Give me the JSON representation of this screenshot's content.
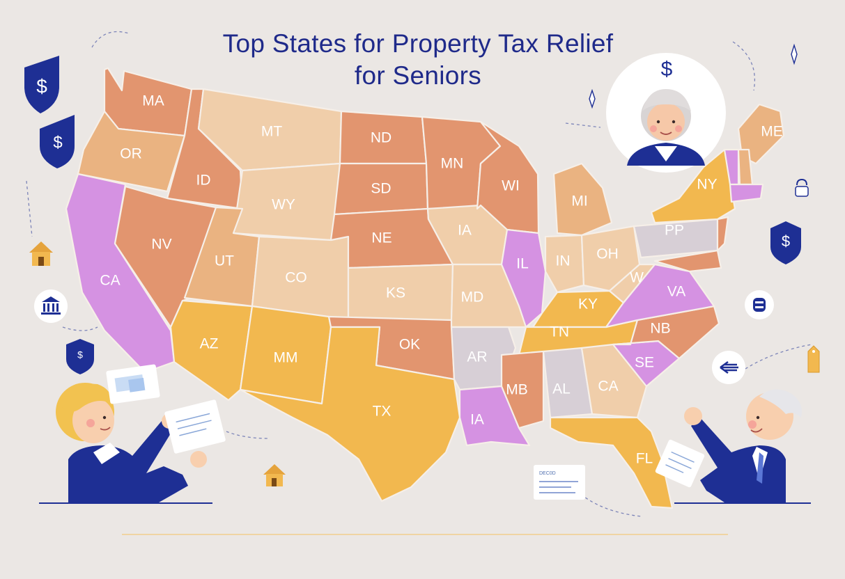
{
  "title": {
    "line1": "Top States for Property Tax Relief",
    "line2": "for Seniors"
  },
  "colors": {
    "background": "#ebe7e4",
    "title": "#1f2a8a",
    "terracotta": "#e2956f",
    "beige": "#f0ceaa",
    "tan": "#eab381",
    "gold": "#f2b84f",
    "lavender": "#d592e2",
    "grey": "#d7cfd6",
    "navy": "#1e2f94"
  },
  "states": [
    {
      "id": "WA",
      "label": "MA",
      "color": "terracotta"
    },
    {
      "id": "OR",
      "label": "OR",
      "color": "tan"
    },
    {
      "id": "CA",
      "label": "CA",
      "color": "lavender"
    },
    {
      "id": "ID",
      "label": "ID",
      "color": "terracotta"
    },
    {
      "id": "NV",
      "label": "NV",
      "color": "terracotta"
    },
    {
      "id": "MT",
      "label": "MT",
      "color": "beige"
    },
    {
      "id": "WY",
      "label": "WY",
      "color": "beige"
    },
    {
      "id": "UT",
      "label": "UT",
      "color": "tan"
    },
    {
      "id": "CO",
      "label": "CO",
      "color": "beige"
    },
    {
      "id": "AZ",
      "label": "AZ",
      "color": "gold"
    },
    {
      "id": "NM",
      "label": "MM",
      "color": "gold"
    },
    {
      "id": "ND",
      "label": "ND",
      "color": "terracotta"
    },
    {
      "id": "SD",
      "label": "SD",
      "color": "terracotta"
    },
    {
      "id": "NE",
      "label": "NE",
      "color": "terracotta"
    },
    {
      "id": "KS",
      "label": "KS",
      "color": "beige"
    },
    {
      "id": "OK",
      "label": "OK",
      "color": "terracotta"
    },
    {
      "id": "TX",
      "label": "TX",
      "color": "gold"
    },
    {
      "id": "MN",
      "label": "MN",
      "color": "terracotta"
    },
    {
      "id": "IA",
      "label": "IA",
      "color": "beige"
    },
    {
      "id": "MO",
      "label": "MD",
      "color": "beige"
    },
    {
      "id": "AR",
      "label": "AR",
      "color": "grey"
    },
    {
      "id": "LA",
      "label": "IA",
      "color": "lavender"
    },
    {
      "id": "WI",
      "label": "WI",
      "color": "terracotta"
    },
    {
      "id": "IL",
      "label": "IL",
      "color": "lavender"
    },
    {
      "id": "MI",
      "label": "MI",
      "color": "tan"
    },
    {
      "id": "IN",
      "label": "IN",
      "color": "beige"
    },
    {
      "id": "OH",
      "label": "OH",
      "color": "beige"
    },
    {
      "id": "KY",
      "label": "KY",
      "color": "gold"
    },
    {
      "id": "TN",
      "label": "TN",
      "color": "gold"
    },
    {
      "id": "MS",
      "label": "MB",
      "color": "terracotta"
    },
    {
      "id": "AL",
      "label": "AL",
      "color": "grey"
    },
    {
      "id": "GA",
      "label": "CA",
      "color": "beige"
    },
    {
      "id": "FL",
      "label": "FL",
      "color": "gold"
    },
    {
      "id": "SC",
      "label": "SE",
      "color": "lavender"
    },
    {
      "id": "NC",
      "label": "NB",
      "color": "terracotta"
    },
    {
      "id": "VA",
      "label": "VA",
      "color": "lavender"
    },
    {
      "id": "WV",
      "label": "W",
      "color": "beige"
    },
    {
      "id": "PA",
      "label": "PP",
      "color": "grey"
    },
    {
      "id": "NY",
      "label": "NY",
      "color": "gold"
    },
    {
      "id": "ME",
      "label": "ME",
      "color": "tan"
    },
    {
      "id": "VT",
      "label": "",
      "color": "lavender"
    },
    {
      "id": "NH",
      "label": "",
      "color": "tan"
    },
    {
      "id": "MA2",
      "label": "",
      "color": "lavender"
    },
    {
      "id": "NJ",
      "label": "",
      "color": "terracotta"
    },
    {
      "id": "MD2",
      "label": "",
      "color": "terracotta"
    }
  ],
  "icons": {
    "shield": "dollar-shield-icon",
    "house": "house-icon",
    "bank": "bank-icon",
    "coin": "coin-icon",
    "arrow": "arrow-left-icon",
    "tag": "price-tag-icon",
    "document": "document-icon",
    "senior_woman": "senior-woman-avatar",
    "senior_man": "senior-man-figure",
    "dollar_symbol": "$"
  },
  "document_caption": "DEC0D"
}
